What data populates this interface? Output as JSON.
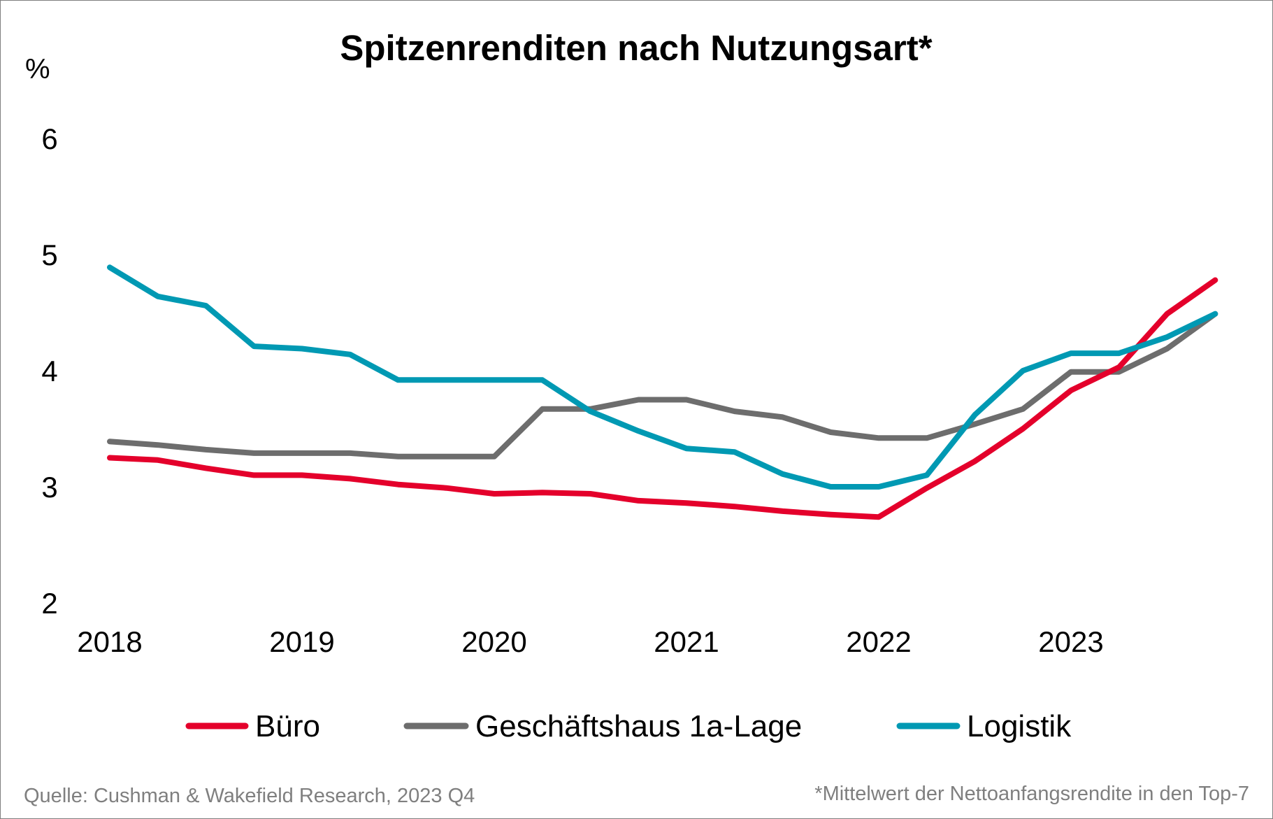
{
  "chart_data": {
    "type": "line",
    "title": "Spitzenrenditen nach Nutzungsart*",
    "ylabel": "%",
    "xlabel": "",
    "ylim": [
      2,
      6
    ],
    "yticks": [
      "2",
      "3",
      "4",
      "5",
      "6"
    ],
    "xtick_labels": [
      "2018",
      "2019",
      "2020",
      "2021",
      "2022",
      "2023"
    ],
    "x": [
      "2018 Q1",
      "2018 Q2",
      "2018 Q3",
      "2018 Q4",
      "2019 Q1",
      "2019 Q2",
      "2019 Q3",
      "2019 Q4",
      "2020 Q1",
      "2020 Q2",
      "2020 Q3",
      "2020 Q4",
      "2021 Q1",
      "2021 Q2",
      "2021 Q3",
      "2021 Q4",
      "2022 Q1",
      "2022 Q2",
      "2022 Q3",
      "2022 Q4",
      "2023 Q1",
      "2023 Q2",
      "2023 Q3",
      "2023 Q4"
    ],
    "series": [
      {
        "name": "Büro",
        "color": "#e4002b",
        "values": [
          3.25,
          3.23,
          3.16,
          3.1,
          3.1,
          3.07,
          3.02,
          2.99,
          2.94,
          2.95,
          2.94,
          2.88,
          2.86,
          2.83,
          2.79,
          2.76,
          2.74,
          2.99,
          3.22,
          3.5,
          3.83,
          4.03,
          4.49,
          4.78
        ]
      },
      {
        "name": "Geschäftshaus 1a-Lage",
        "color": "#6d6d6d",
        "values": [
          3.39,
          3.36,
          3.32,
          3.29,
          3.29,
          3.29,
          3.26,
          3.26,
          3.26,
          3.67,
          3.67,
          3.75,
          3.75,
          3.65,
          3.6,
          3.47,
          3.42,
          3.42,
          3.54,
          3.67,
          3.99,
          3.99,
          4.19,
          4.49
        ]
      },
      {
        "name": "Logistik",
        "color": "#0099b3",
        "values": [
          4.89,
          4.64,
          4.56,
          4.21,
          4.19,
          4.14,
          3.92,
          3.92,
          3.92,
          3.92,
          3.65,
          3.48,
          3.33,
          3.3,
          3.11,
          3.0,
          3.0,
          3.1,
          3.62,
          4.0,
          4.15,
          4.15,
          4.29,
          4.49
        ]
      }
    ],
    "legend_position": "bottom"
  },
  "footer": {
    "source": "Quelle: Cushman & Wakefield Research, 2023 Q4",
    "note": "*Mittelwert der Nettoanfangsrendite in den Top-7"
  }
}
